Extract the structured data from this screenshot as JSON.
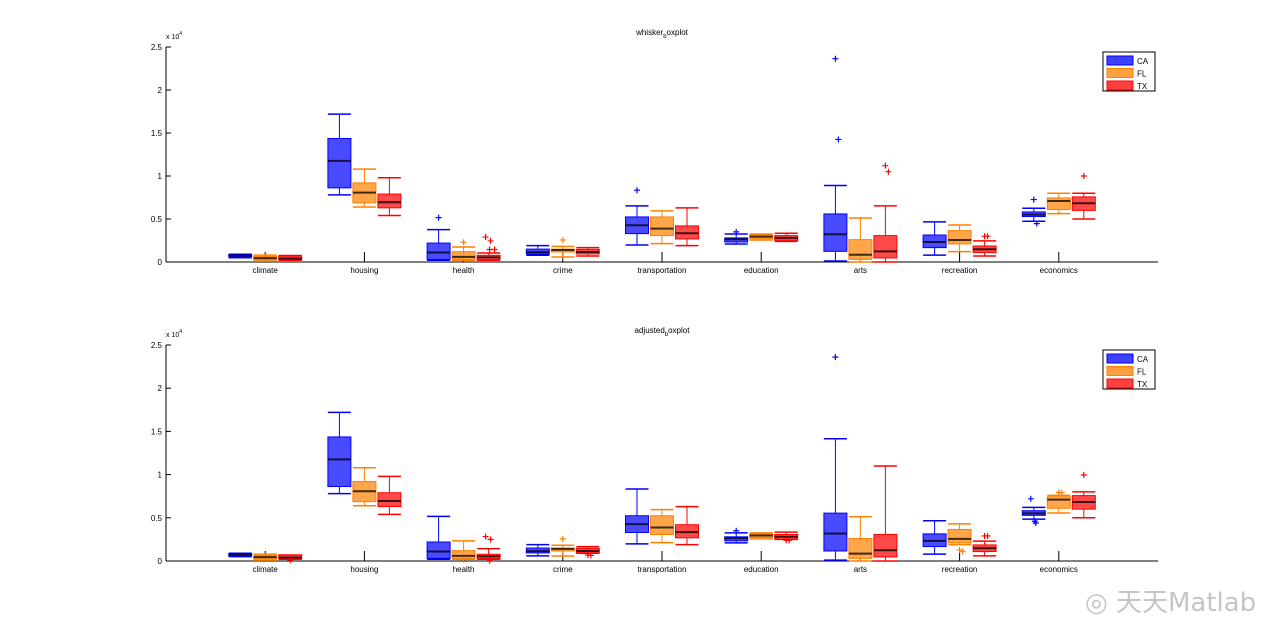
{
  "chart_data": [
    {
      "type": "boxplot",
      "title": "whisker_boxplot",
      "categories": [
        "climate",
        "housing",
        "health",
        "crime",
        "transportation",
        "education",
        "arts",
        "recreation",
        "economics"
      ],
      "y_tick_labels": [
        "0",
        "0.5",
        "1",
        "1.5",
        "2",
        "2.5"
      ],
      "y_multiplier_base": "x 10",
      "y_multiplier_exp": "4",
      "ylim": [
        0,
        2.5
      ],
      "legend_position": "top-right",
      "series": [
        {
          "name": "CA",
          "color": "#0000ff",
          "fill": "#4040ff",
          "boxes": [
            [
              0.05,
              0.06,
              0.075,
              0.085,
              0.09
            ],
            [
              0.78,
              0.862,
              1.176,
              1.436,
              1.72
            ],
            [
              0.02,
              0.03,
              0.11,
              0.22,
              0.377
            ],
            [
              0.078,
              0.093,
              0.115,
              0.15,
              0.19
            ],
            [
              0.198,
              0.33,
              0.427,
              0.524,
              0.652
            ],
            [
              0.21,
              0.233,
              0.264,
              0.28,
              0.326
            ],
            [
              0.012,
              0.124,
              0.322,
              0.559,
              0.889
            ],
            [
              0.08,
              0.167,
              0.233,
              0.314,
              0.466
            ],
            [
              0.474,
              0.528,
              0.551,
              0.582,
              0.625
            ]
          ],
          "outliers": [
            [],
            [],
            [
              0.516
            ],
            [],
            [
              0.835
            ],
            [
              0.35
            ],
            [
              2.364,
              1.425
            ],
            [],
            [
              0.726,
              0.446
            ]
          ]
        },
        {
          "name": "FL",
          "color": "#ff8000",
          "fill": "#ffa040",
          "boxes": [
            [
              0.01,
              0.025,
              0.045,
              0.065,
              0.08
            ],
            [
              0.64,
              0.687,
              0.807,
              0.92,
              1.08
            ],
            [
              0.02,
              0.03,
              0.06,
              0.12,
              0.175
            ],
            [
              0.058,
              0.116,
              0.14,
              0.15,
              0.182
            ],
            [
              0.213,
              0.307,
              0.388,
              0.524,
              0.594
            ],
            [
              0.256,
              0.272,
              0.295,
              0.314,
              0.326
            ],
            [
              0,
              0.03,
              0.085,
              0.26,
              0.512
            ],
            [
              0.12,
              0.21,
              0.256,
              0.365,
              0.43
            ],
            [
              0.563,
              0.61,
              0.71,
              0.745,
              0.8
            ]
          ],
          "outliers": [
            [],
            [],
            [
              0.23
            ],
            [
              0.256
            ],
            [],
            [],
            [],
            [],
            []
          ]
        },
        {
          "name": "TX",
          "color": "#ff0000",
          "fill": "#ff4040",
          "boxes": [
            [
              0.02,
              0.025,
              0.04,
              0.07,
              0.075
            ],
            [
              0.54,
              0.63,
              0.695,
              0.79,
              0.98
            ],
            [
              0.02,
              0.027,
              0.054,
              0.078,
              0.105
            ],
            [
              0.07,
              0.093,
              0.116,
              0.147,
              0.167
            ],
            [
              0.19,
              0.268,
              0.334,
              0.42,
              0.629
            ],
            [
              0.24,
              0.252,
              0.28,
              0.307,
              0.334
            ],
            [
              0,
              0.047,
              0.124,
              0.307,
              0.652
            ],
            [
              0.07,
              0.109,
              0.148,
              0.186,
              0.245
            ],
            [
              0.5,
              0.6,
              0.683,
              0.757,
              0.8
            ]
          ],
          "outliers": [
            [],
            [],
            [
              0.29,
              0.245,
              0.145,
              0.145
            ],
            [],
            [],
            [],
            [
              1.12,
              1.05
            ],
            [
              0.3,
              0.3
            ],
            [
              1.0
            ]
          ]
        }
      ]
    },
    {
      "type": "boxplot",
      "title": "adjusted_boxplot",
      "categories": [
        "climate",
        "housing",
        "health",
        "crime",
        "transportation",
        "education",
        "arts",
        "recreation",
        "economics"
      ],
      "y_tick_labels": [
        "0",
        "0.5",
        "1",
        "1.5",
        "2",
        "2.5"
      ],
      "y_multiplier_base": "x 10",
      "y_multiplier_exp": "4",
      "ylim": [
        0,
        2.5
      ],
      "legend_position": "top-right",
      "series": [
        {
          "name": "CA",
          "color": "#0000ff",
          "fill": "#4040ff",
          "boxes": [
            [
              0.05,
              0.06,
              0.075,
              0.085,
              0.09
            ],
            [
              0.78,
              0.862,
              1.176,
              1.436,
              1.72
            ],
            [
              0.02,
              0.03,
              0.11,
              0.22,
              0.516
            ],
            [
              0.06,
              0.093,
              0.115,
              0.15,
              0.19
            ],
            [
              0.198,
              0.33,
              0.427,
              0.524,
              0.833
            ],
            [
              0.21,
              0.233,
              0.264,
              0.28,
              0.326
            ],
            [
              0.01,
              0.116,
              0.318,
              0.554,
              1.415
            ],
            [
              0.08,
              0.167,
              0.233,
              0.314,
              0.466
            ],
            [
              0.485,
              0.528,
              0.551,
              0.582,
              0.62
            ]
          ],
          "outliers": [
            [],
            [],
            [],
            [],
            [],
            [
              0.35
            ],
            [
              2.36
            ],
            [],
            [
              0.72,
              0.44,
              0.46
            ]
          ]
        },
        {
          "name": "FL",
          "color": "#ff8000",
          "fill": "#ffa040",
          "boxes": [
            [
              0.01,
              0.025,
              0.045,
              0.065,
              0.08
            ],
            [
              0.64,
              0.687,
              0.807,
              0.92,
              1.08
            ],
            [
              0.02,
              0.03,
              0.06,
              0.12,
              0.233
            ],
            [
              0.058,
              0.116,
              0.14,
              0.15,
              0.182
            ],
            [
              0.213,
              0.307,
              0.388,
              0.524,
              0.594
            ],
            [
              0.256,
              0.272,
              0.295,
              0.314,
              0.326
            ],
            [
              0,
              0.03,
              0.085,
              0.26,
              0.512
            ],
            [
              0.19,
              0.21,
              0.256,
              0.365,
              0.43
            ],
            [
              0.555,
              0.61,
              0.71,
              0.744,
              0.76
            ]
          ],
          "outliers": [
            [],
            [],
            [
              0.015
            ],
            [
              0.256
            ],
            [],
            [],
            [],
            [
              0.128,
              0.112
            ],
            [
              0.795,
              0.79
            ]
          ]
        },
        {
          "name": "TX",
          "color": "#ff0000",
          "fill": "#ff4040",
          "boxes": [
            [
              0.02,
              0.025,
              0.04,
              0.07,
              0.07
            ],
            [
              0.54,
              0.63,
              0.695,
              0.79,
              0.98
            ],
            [
              0.02,
              0.027,
              0.054,
              0.078,
              0.143
            ],
            [
              0.09,
              0.093,
              0.116,
              0.147,
              0.167
            ],
            [
              0.19,
              0.268,
              0.334,
              0.42,
              0.629
            ],
            [
              0.25,
              0.252,
              0.28,
              0.307,
              0.334
            ],
            [
              0,
              0.047,
              0.124,
              0.307,
              1.1
            ],
            [
              0.06,
              0.109,
              0.148,
              0.186,
              0.23
            ],
            [
              0.5,
              0.6,
              0.683,
              0.757,
              0.8
            ]
          ],
          "outliers": [
            [
              0.01
            ],
            [],
            [
              0.283,
              0.25,
              0.005
            ],
            [
              0.07,
              0.065
            ],
            [],
            [
              0.24,
              0.24
            ],
            [],
            [
              0.29,
              0.29
            ],
            [
              0.995
            ]
          ]
        }
      ]
    }
  ],
  "watermark": "天天Matlab"
}
